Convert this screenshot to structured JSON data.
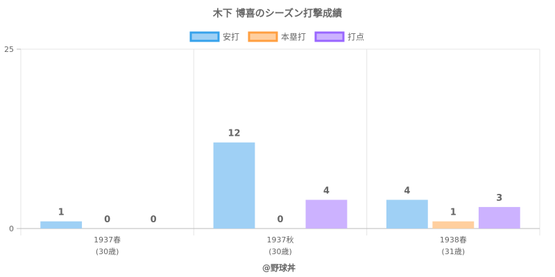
{
  "chart_data": {
    "type": "bar",
    "title": "木下 博喜のシーズン打撃成績",
    "categories": [
      {
        "label": "1937春",
        "sub": "(30歳)"
      },
      {
        "label": "1937秋",
        "sub": "(30歳)"
      },
      {
        "label": "1938春",
        "sub": "(31歳)"
      }
    ],
    "series": [
      {
        "name": "安打",
        "values": [
          1,
          12,
          4
        ],
        "fill": "#9fd0f5",
        "stroke": "#36a2eb"
      },
      {
        "name": "本塁打",
        "values": [
          0,
          0,
          1
        ],
        "fill": "#ffcf9f",
        "stroke": "#ff9f40"
      },
      {
        "name": "打点",
        "values": [
          0,
          4,
          3
        ],
        "fill": "#ccb2ff",
        "stroke": "#9966ff"
      }
    ],
    "ylim": [
      0,
      25
    ],
    "y_ticks": [
      "0",
      "25"
    ],
    "legend_position": "top",
    "grid": true
  },
  "credit": "@野球丼"
}
